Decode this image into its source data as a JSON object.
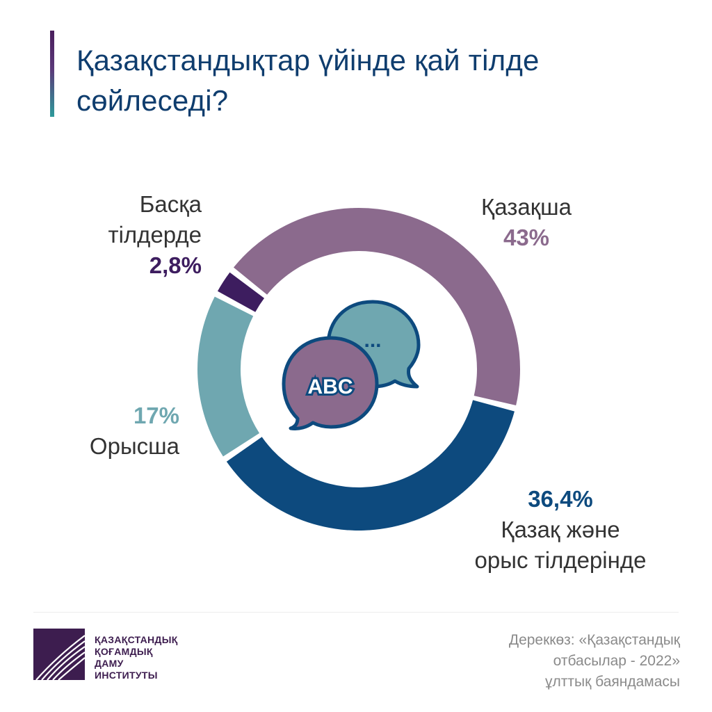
{
  "title": "Қазақстандықтар үйінде қай тілде сөйлеседі?",
  "colors": {
    "kazakh": "#8b6a8d",
    "both": "#0d4a7e",
    "russian": "#6fa7b0",
    "other": "#3d1d5f",
    "title": "#0f3d6e"
  },
  "icon": {
    "bubble_front_text": "ABC",
    "bubble_back_text": "...",
    "name": "speech-bubbles-icon"
  },
  "chart_data": {
    "type": "pie",
    "variant": "donut",
    "title": "Қазақстандықтар үйінде қай тілде сөйлеседі?",
    "slices": [
      {
        "label": "Қазақша",
        "value": 43,
        "display": "43%",
        "color": "#8b6a8d"
      },
      {
        "label": "Қазақ және орыс тілдерінде",
        "value": 36.4,
        "display": "36,4%",
        "color": "#0d4a7e"
      },
      {
        "label": "Орысша",
        "value": 17,
        "display": "17%",
        "color": "#6fa7b0"
      },
      {
        "label": "Басқа тілдерде",
        "value": 2.8,
        "display": "2,8%",
        "color": "#3d1d5f"
      }
    ]
  },
  "labels": {
    "other_line1": "Басқа",
    "other_line2": "тілдерде",
    "other_value": "2,8%",
    "kazakh_name": "Қазақша",
    "kazakh_value": "43%",
    "russian_value": "17%",
    "russian_name": "Орысша",
    "both_value": "36,4%",
    "both_line1": "Қазақ және",
    "both_line2": "орыс тілдерінде"
  },
  "logo": {
    "line1": "ҚАЗАҚСТАНДЫҚ",
    "line2": "ҚОҒАМДЫҚ",
    "line3": "ДАМУ",
    "line4": "ИНСТИТУТЫ"
  },
  "source": {
    "line1": "Дереккөз: «Қазақстандық",
    "line2": "отбасылар - 2022»",
    "line3": "ұлттық баяндамасы"
  }
}
